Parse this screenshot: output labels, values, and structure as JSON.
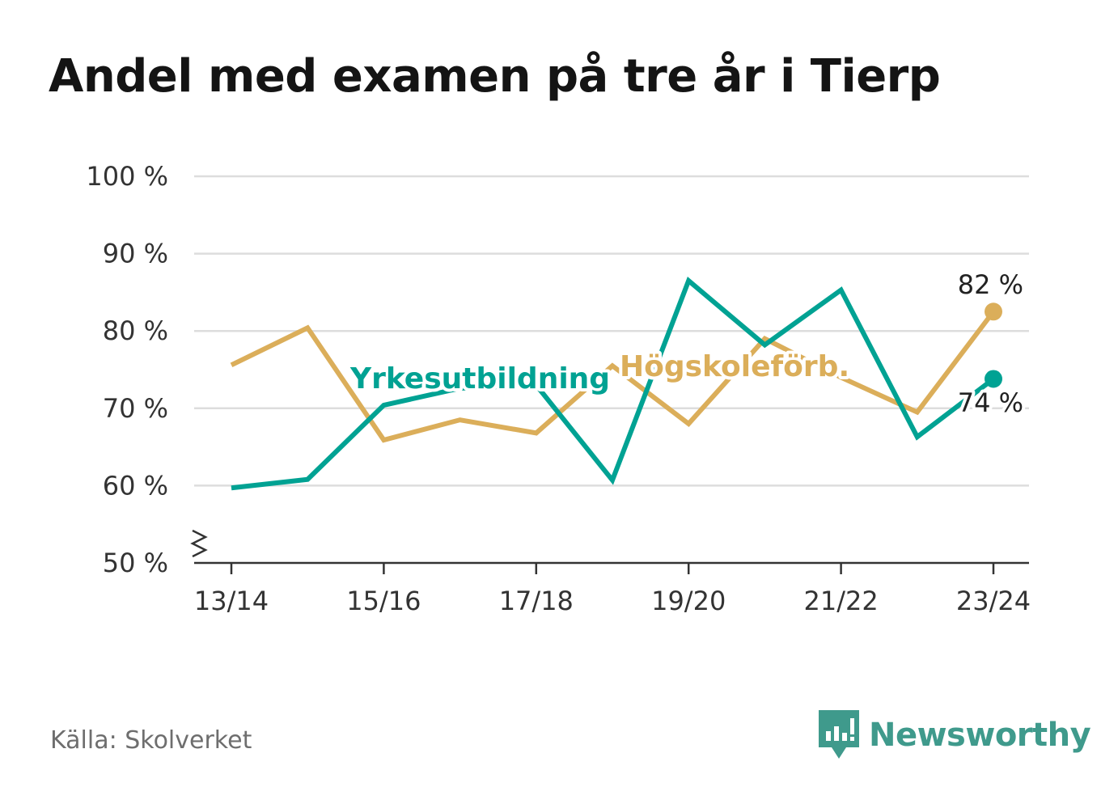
{
  "chart_data": {
    "type": "line",
    "title": "Andel med examen på tre år i Tierp",
    "x": [
      "13/14",
      "14/15",
      "15/16",
      "16/17",
      "17/18",
      "18/19",
      "19/20",
      "20/21",
      "21/22",
      "22/23",
      "23/24"
    ],
    "x_tick_labels": [
      "13/14",
      "15/16",
      "17/18",
      "19/20",
      "21/22",
      "23/24"
    ],
    "ylim": [
      50,
      100
    ],
    "y_ticks": [
      50,
      60,
      70,
      80,
      90,
      100
    ],
    "y_tick_labels": [
      "50 %",
      "60 %",
      "70 %",
      "80 %",
      "90 %",
      "100 %"
    ],
    "axis_break": true,
    "grid": true,
    "series": [
      {
        "name": "Högskoleförb.",
        "color": "#dbae5a",
        "values": [
          75.6,
          80.4,
          65.9,
          68.5,
          66.8,
          75.5,
          68.0,
          79.0,
          74.0,
          69.5,
          82.5
        ],
        "end_label": "82 %"
      },
      {
        "name": "Yrkesutbildning",
        "color": "#00a293",
        "values": [
          59.7,
          60.8,
          70.4,
          72.6,
          73.0,
          60.7,
          86.5,
          78.2,
          85.3,
          66.3,
          73.8
        ],
        "end_label": "74 %"
      }
    ]
  },
  "source": "Källa: Skolverket",
  "brand": {
    "name": "Newsworthy",
    "icon": "bar-chart-speech-bubble-icon",
    "color": "#3f9a8c"
  }
}
